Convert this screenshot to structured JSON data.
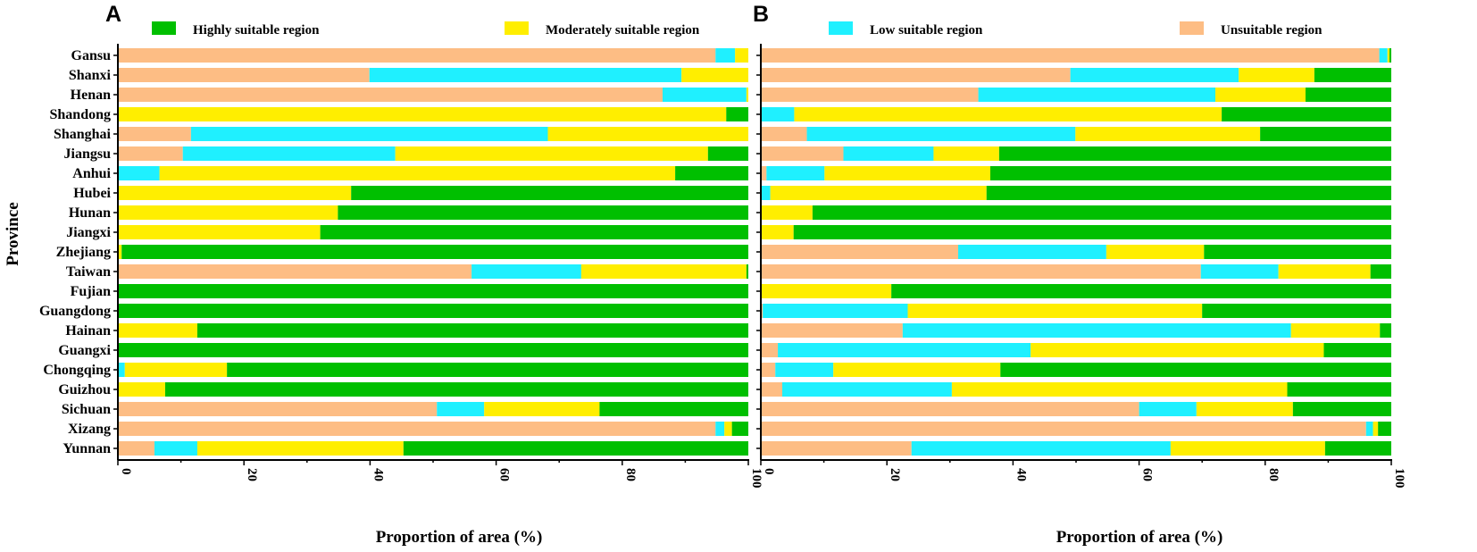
{
  "chart_data": {
    "type": "bar",
    "orientation": "horizontal-stacked",
    "ylabel": "Province",
    "xlabel": "Proportion of area (%)",
    "xlim": [
      0,
      100
    ],
    "xticks": [
      "0",
      "20",
      "40",
      "60",
      "80",
      "100"
    ],
    "categories": [
      "Gansu",
      "Shanxi",
      "Henan",
      "Shandong",
      "Shanghai",
      "Jiangsu",
      "Anhui",
      "Hubei",
      "Hunan",
      "Jiangxi",
      "Zhejiang",
      "Taiwan",
      "Fujian",
      "Guangdong",
      "Hainan",
      "Guangxi",
      "Chongqing",
      "Guizhou",
      "Sichuan",
      "Xizang",
      "Yunnan"
    ],
    "legend": [
      {
        "name": "Highly suitable region",
        "color": "#00bf00"
      },
      {
        "name": "Moderately suitable region",
        "color": "#ffee00"
      },
      {
        "name": "Low suitable region",
        "color": "#1ff0ff"
      },
      {
        "name": "Unsuitable region",
        "color": "#fdbd84"
      }
    ],
    "panels": [
      {
        "label": "A",
        "series": [
          {
            "name": "Unsuitable region",
            "values": [
              94.8,
              39.9,
              86.4,
              0,
              11.6,
              10.3,
              0,
              0,
              0,
              0,
              0,
              56.1,
              0,
              0,
              0,
              0,
              0,
              0,
              50.6,
              94.8,
              5.8
            ]
          },
          {
            "name": "Low suitable region",
            "values": [
              3.1,
              49.5,
              13.3,
              0,
              56.6,
              33.7,
              6.6,
              0,
              0,
              0,
              0,
              17.4,
              0,
              0,
              0,
              0,
              1.1,
              0,
              7.5,
              1.4,
              6.8
            ]
          },
          {
            "name": "Moderately suitable region",
            "values": [
              2.1,
              10.6,
              0.3,
              96.5,
              31.8,
              49.6,
              81.8,
              37.0,
              34.9,
              32.1,
              0.6,
              26.2,
              0,
              0,
              12.6,
              0,
              16.2,
              7.5,
              18.3,
              1.2,
              32.7
            ]
          },
          {
            "name": "Highly suitable region",
            "values": [
              0,
              0,
              0,
              3.5,
              0,
              6.4,
              11.6,
              63.0,
              65.1,
              67.9,
              99.4,
              0.3,
              100,
              100,
              87.4,
              100,
              82.7,
              92.5,
              23.6,
              2.6,
              54.7
            ]
          }
        ]
      },
      {
        "label": "B",
        "series": [
          {
            "name": "Unsuitable region",
            "values": [
              98.1,
              49.1,
              34.5,
              0,
              7.3,
              13.1,
              0.9,
              0,
              0,
              0,
              31.3,
              69.8,
              0,
              0.3,
              22.5,
              2.7,
              2.3,
              3.4,
              60.0,
              96.0,
              23.9
            ]
          },
          {
            "name": "Low suitable region",
            "values": [
              1.3,
              26.7,
              37.6,
              5.3,
              42.6,
              14.3,
              9.2,
              1.5,
              0,
              0,
              23.5,
              12.3,
              0,
              23.0,
              61.6,
              40.1,
              9.2,
              26.9,
              9.1,
              1.1,
              41.1
            ]
          },
          {
            "name": "Moderately suitable region",
            "values": [
              0.3,
              12.0,
              14.3,
              67.8,
              29.3,
              10.4,
              26.3,
              34.3,
              8.2,
              5.2,
              15.5,
              14.6,
              20.7,
              46.7,
              14.1,
              46.5,
              26.5,
              53.2,
              15.3,
              0.8,
              24.5
            ]
          },
          {
            "name": "Highly suitable region",
            "values": [
              0.3,
              12.2,
              13.6,
              26.9,
              20.8,
              62.2,
              63.6,
              64.2,
              91.8,
              94.8,
              29.7,
              3.3,
              79.3,
              30.0,
              1.8,
              10.7,
              62.0,
              16.5,
              15.6,
              2.1,
              10.5
            ]
          }
        ]
      }
    ]
  }
}
